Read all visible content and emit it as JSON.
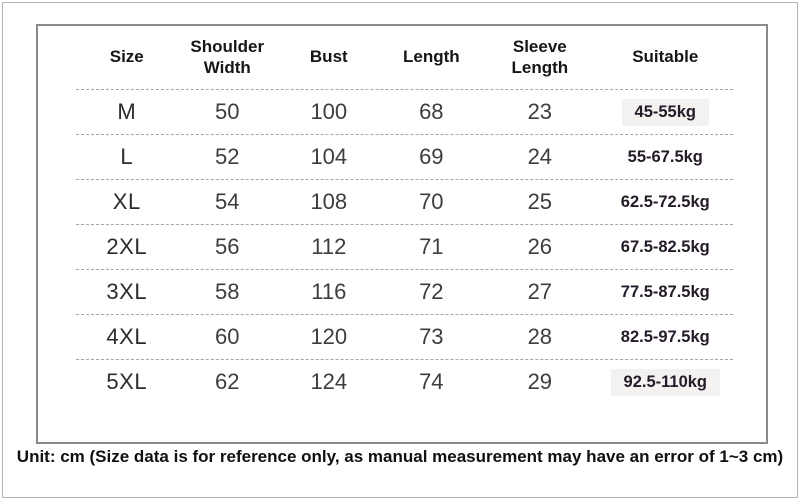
{
  "chart_data": {
    "type": "table",
    "columns": [
      "Size",
      "Shoulder Width",
      "Bust",
      "Length",
      "Sleeve Length",
      "Suitable"
    ],
    "rows": [
      {
        "size": "M",
        "shoulder_width": "50",
        "bust": "100",
        "length": "68",
        "sleeve_length": "23",
        "suitable": "45-55kg",
        "highlight": true
      },
      {
        "size": "L",
        "shoulder_width": "52",
        "bust": "104",
        "length": "69",
        "sleeve_length": "24",
        "suitable": "55-67.5kg",
        "highlight": false
      },
      {
        "size": "XL",
        "shoulder_width": "54",
        "bust": "108",
        "length": "70",
        "sleeve_length": "25",
        "suitable": "62.5-72.5kg",
        "highlight": false
      },
      {
        "size": "2XL",
        "shoulder_width": "56",
        "bust": "112",
        "length": "71",
        "sleeve_length": "26",
        "suitable": "67.5-82.5kg",
        "highlight": false
      },
      {
        "size": "3XL",
        "shoulder_width": "58",
        "bust": "116",
        "length": "72",
        "sleeve_length": "27",
        "suitable": "77.5-87.5kg",
        "highlight": false
      },
      {
        "size": "4XL",
        "shoulder_width": "60",
        "bust": "120",
        "length": "73",
        "sleeve_length": "28",
        "suitable": "82.5-97.5kg",
        "highlight": false
      },
      {
        "size": "5XL",
        "shoulder_width": "62",
        "bust": "124",
        "length": "74",
        "sleeve_length": "29",
        "suitable": "92.5-110kg",
        "highlight": true
      }
    ],
    "unit": "cm",
    "title": "",
    "legend": "none",
    "grid": "dashed row separators only"
  },
  "footer": {
    "note": "Unit: cm (Size data is for reference only, as manual measurement may have an error of 1~3 cm)"
  },
  "colors": {
    "table_border": "#8a8a8a",
    "page_border": "#b5b5b5",
    "row_separator": "#a6a6a6",
    "suitable_text": "#241a28",
    "highlight_bg": "#f3f2f1"
  }
}
